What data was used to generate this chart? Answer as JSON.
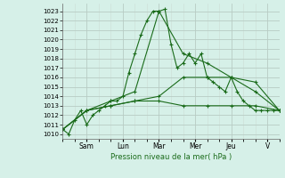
{
  "title": "Pression niveau de la mer( hPa )",
  "bg_color": "#d6f0e8",
  "grid_major_color": "#b8ccc4",
  "grid_minor_color": "#ccddd6",
  "line_color": "#1a6b1a",
  "ylim": [
    1009.5,
    1023.8
  ],
  "yticks": [
    1010,
    1011,
    1012,
    1013,
    1014,
    1015,
    1016,
    1017,
    1018,
    1019,
    1020,
    1021,
    1022,
    1023
  ],
  "x_day_labels": [
    "Sam",
    "Lun",
    "Mar",
    "Mer",
    "Jeu",
    "V"
  ],
  "x_day_positions": [
    16,
    40,
    64,
    88,
    112,
    136
  ],
  "xlim": [
    0,
    144
  ],
  "series": [
    {
      "x": [
        0,
        4,
        8,
        12,
        16,
        20,
        24,
        28,
        32,
        36,
        40,
        44,
        48,
        52,
        56,
        60,
        64,
        68,
        72,
        76,
        80,
        84,
        88,
        92,
        96,
        100,
        104,
        108,
        112,
        116,
        120,
        124,
        128,
        132,
        136,
        140,
        144
      ],
      "y": [
        1010.5,
        1010.0,
        1011.5,
        1012.5,
        1011.0,
        1012.0,
        1012.5,
        1013.0,
        1013.5,
        1013.5,
        1014.0,
        1016.5,
        1018.5,
        1020.5,
        1022.0,
        1023.0,
        1023.0,
        1023.2,
        1019.5,
        1017.0,
        1017.5,
        1018.5,
        1017.5,
        1018.5,
        1016.0,
        1015.5,
        1015.0,
        1014.5,
        1016.0,
        1014.5,
        1013.5,
        1013.0,
        1012.5,
        1012.5,
        1012.5,
        1012.5,
        1012.5
      ]
    },
    {
      "x": [
        0,
        16,
        32,
        48,
        64,
        80,
        96,
        112,
        128,
        144
      ],
      "y": [
        1010.5,
        1012.5,
        1013.5,
        1014.5,
        1023.0,
        1018.5,
        1017.5,
        1016.0,
        1014.5,
        1012.5
      ]
    },
    {
      "x": [
        0,
        16,
        32,
        48,
        64,
        80,
        96,
        112,
        128,
        144
      ],
      "y": [
        1010.5,
        1012.5,
        1013.0,
        1013.5,
        1014.0,
        1016.0,
        1016.0,
        1016.0,
        1015.5,
        1012.5
      ]
    },
    {
      "x": [
        0,
        16,
        32,
        48,
        64,
        80,
        96,
        112,
        128,
        144
      ],
      "y": [
        1010.5,
        1012.5,
        1013.0,
        1013.5,
        1013.5,
        1013.0,
        1013.0,
        1013.0,
        1013.0,
        1012.5
      ]
    }
  ]
}
